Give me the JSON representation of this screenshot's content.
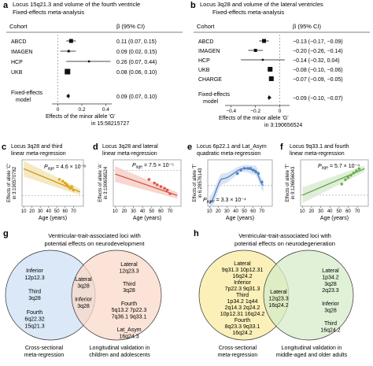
{
  "panels": {
    "a": {
      "letter": "a",
      "title1": "Locus 15q21.3 and volume of the fourth ventricle",
      "title2": "Fixed-effects meta-analysis",
      "cohort_header": "Cohort",
      "beta_header": "β (95% CI)",
      "xlabel1": "Effects of the minor allele 'G'",
      "xlabel2": "in 15:58215727"
    },
    "b": {
      "letter": "b",
      "title1": "Locus 3q28 and volume of the lateral ventricles",
      "title2": "Fixed-effects meta-analysis",
      "cohort_header": "Cohort",
      "beta_header": "β (95% CI)",
      "xlabel1": "Effects of the minor allele 'G'",
      "xlabel2": "in 3:190656524"
    },
    "c": {
      "letter": "c",
      "title1": "Locus 3q28 and third",
      "title2": "linear meta-regression",
      "ylabel1": "Effects of allele 'C'",
      "ylabel2": "in 3:190570782",
      "xlabel": "Age (years)",
      "p_label": "P",
      "p_sub": "age",
      "p_value": " = 4.6 × 10⁻⁸"
    },
    "d": {
      "letter": "d",
      "title1": "Locus 3q28 and lateral",
      "title2": "linear meta-regression",
      "ylabel1": "Effects of allele 'A'",
      "ylabel2": "in 3:190656524",
      "xlabel": "Age (years)",
      "p_label": "P",
      "p_sub": "age",
      "p_value": " = 7.5 × 10⁻⁵"
    },
    "e": {
      "letter": "e",
      "title1": "Locus 6p22.1 and Lat_Asym",
      "title2": "quadratic meta-regression",
      "ylabel1": "Effects of allele 'T'",
      "ylabel2": "in 6:28576143",
      "xlabel": "Age (years)",
      "p_label": "P",
      "p_sub": "age²",
      "p_value": " = 3.3 × 10⁻⁴"
    },
    "f": {
      "letter": "f",
      "title1": "Locus 9q33.1 and fourth",
      "title2": "linear meta-regression",
      "ylabel1": "Effects of allele 'T'",
      "ylabel2": "in 9:126656043",
      "xlabel": "Age (years)",
      "p_label": "P",
      "p_sub": "age",
      "p_value": " = 5.7 × 10⁻⁴"
    },
    "g": {
      "letter": "g",
      "title1": "Ventricular-trait-associated loci with",
      "title2": "potential effects on neurodevelopment",
      "left_only": [
        "Inferior",
        "12p12.3",
        "",
        "Third",
        "3q28",
        "",
        "Fourth",
        "6q22.32",
        "15q21.3"
      ],
      "overlap": [
        "Lateral",
        "3q28",
        "",
        "Inferior",
        "3q28"
      ],
      "right_only": [
        "Lateral",
        "12q23.3",
        "",
        "Third",
        "3q28",
        "",
        "Fourth",
        "5q13.2 7p22.3",
        "7q36.1 9q33.1",
        "",
        "Lat_Asym",
        "16q24.3"
      ],
      "left_label": [
        "Cross-sectional",
        "meta-regression"
      ],
      "right_label": [
        "Longitudinal validation in",
        "children and adolescents"
      ]
    },
    "h": {
      "letter": "h",
      "title1": "Ventricular-trait-associated loci with",
      "title2": "potential effects on neurodegeneration",
      "left_only": [
        "Lateral",
        "9q31.3 10p12.31",
        "16q24.2",
        "Inferior",
        "7p22.3 9q31.3",
        "Third",
        "1p34.2 1q44",
        "2q14.3 2q24.2",
        "10p12.31 16q24.2",
        "Fourth",
        "8q23.3 9q33.1",
        "16q24.2"
      ],
      "overlap": [
        "Lateral",
        "12q23.3",
        "16q24.2"
      ],
      "right_only": [
        "Lateral",
        "1p34.2",
        "3q28",
        "2q23.3",
        "",
        "Inferior",
        "3q28",
        "",
        "Third",
        "16q24.2"
      ],
      "left_label": [
        "Cross-sectional",
        "meta-regression"
      ],
      "right_label": [
        "Longitudinal validation in",
        "middle-aged and older adults"
      ]
    }
  },
  "chart_data": [
    {
      "panel": "a",
      "type": "scatter",
      "categories": [
        "ABCD",
        "IMAGEN",
        "HCP",
        "UKB",
        "Fixed-effects model"
      ],
      "beta": [
        0.11,
        0.09,
        0.26,
        0.08,
        0.09
      ],
      "ci_low": [
        0.07,
        0.02,
        0.07,
        0.06,
        0.07
      ],
      "ci_high": [
        0.15,
        0.15,
        0.44,
        0.1,
        0.1
      ],
      "ci_text": [
        "0.11 (0.07, 0.15)",
        "0.09 (0.02, 0.15)",
        "0.26 (0.07, 0.44)",
        "0.08 (0.06, 0.10)",
        "0.09 (0.07, 0.10)"
      ],
      "xlim": [
        -0.05,
        0.45
      ],
      "xticks": [
        0,
        0.2,
        0.4
      ],
      "xtick_labels": [
        "0",
        "0.2",
        "0.4"
      ]
    },
    {
      "panel": "b",
      "type": "scatter",
      "categories": [
        "ABCD",
        "IMAGEN",
        "HCP",
        "UKB",
        "CHARGE",
        "Fixed-effects model"
      ],
      "beta": [
        -0.13,
        -0.2,
        -0.14,
        -0.08,
        -0.07,
        -0.09
      ],
      "ci_low": [
        -0.17,
        -0.26,
        -0.32,
        -0.1,
        -0.09,
        -0.1
      ],
      "ci_high": [
        -0.09,
        -0.14,
        0.04,
        -0.06,
        -0.05,
        -0.07
      ],
      "ci_text": [
        "−0.13 (−0.17, −0.09)",
        "−0.20 (−0.26, −0.14)",
        "−0.14 (−0.32, 0.04)",
        "−0.08 (−0.10, −0.06)",
        "−0.07 (−0.09, −0.05)",
        "−0.09 (−0.10, −0.07)"
      ],
      "xlim": [
        -0.45,
        0.08
      ],
      "xticks": [
        -0.4,
        -0.2,
        0
      ],
      "xtick_labels": [
        "−0.4",
        "−0.2",
        "0"
      ]
    },
    {
      "panel": "c",
      "type": "scatter",
      "fit": "linear",
      "x": [
        53,
        57,
        60,
        62,
        64,
        66,
        68,
        70
      ],
      "y": [
        0.09,
        0.08,
        0.07,
        0.06,
        0.05,
        0.04,
        0.05,
        0.03
      ],
      "fit_y": [
        0.15,
        0.02
      ],
      "xlim": [
        8,
        82
      ],
      "ylim": [
        -0.06,
        0.2
      ],
      "xticks": [
        10,
        20,
        30,
        40,
        50,
        60,
        70
      ],
      "point_color": "#e0a81c",
      "line_color": "#c99a17",
      "band_color": "#f3e3b3"
    },
    {
      "panel": "d",
      "type": "scatter",
      "fit": "linear",
      "x": [
        47,
        53,
        56,
        60,
        64,
        67,
        70
      ],
      "y": [
        -0.05,
        -0.07,
        -0.08,
        -0.09,
        -0.1,
        -0.11,
        -0.13
      ],
      "fit_y": [
        -0.02,
        -0.14
      ],
      "xlim": [
        8,
        82
      ],
      "ylim": [
        -0.2,
        0.06
      ],
      "xticks": [
        10,
        20,
        30,
        40,
        50,
        60,
        70
      ],
      "point_color": "#e0584a",
      "line_color": "#d05a4c",
      "band_color": "#f6cdc6"
    },
    {
      "panel": "e",
      "type": "scatter",
      "fit": "quadratic",
      "x": [
        42,
        46,
        50,
        54,
        57,
        60,
        63,
        66,
        70
      ],
      "y": [
        0.07,
        0.09,
        0.1,
        0.1,
        0.1,
        0.09,
        0.08,
        0.07,
        0.02
      ],
      "fit_y_at": [
        -0.1,
        0.04,
        0.1,
        0.09,
        0.0
      ],
      "fit_x_at": [
        10,
        25,
        50,
        62,
        72
      ],
      "xlim": [
        8,
        82
      ],
      "ylim": [
        -0.12,
        0.15
      ],
      "xticks": [
        10,
        20,
        30,
        40,
        50,
        60,
        70
      ],
      "point_color": "#4f82c4",
      "line_color": "#4f82c4",
      "band_color": "#cfdcef"
    },
    {
      "panel": "f",
      "type": "scatter",
      "fit": "linear",
      "x": [
        53,
        57,
        60,
        63,
        66,
        69,
        72
      ],
      "y": [
        0.05,
        0.07,
        0.08,
        0.09,
        0.1,
        0.11,
        0.12
      ],
      "fit_y": [
        0.0,
        0.12
      ],
      "xlim": [
        8,
        82
      ],
      "ylim": [
        -0.05,
        0.16
      ],
      "xticks": [
        10,
        20,
        30,
        40,
        50,
        60,
        70
      ],
      "point_color": "#6bb14b",
      "line_color": "#5ea34a",
      "band_color": "#d8ead0"
    }
  ],
  "colors": {
    "venn_g_left": "#d6e6f6",
    "venn_g_right": "#f9d9c9",
    "venn_h_left": "#fbeeb0",
    "venn_h_right": "#d6ecc9"
  }
}
